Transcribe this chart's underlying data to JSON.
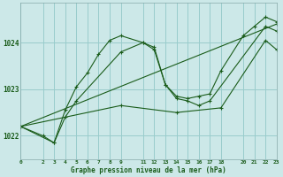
{
  "background_color": "#cce8e8",
  "grid_color": "#99cccc",
  "line_color": "#1a5c1a",
  "marker_color": "#1a5c1a",
  "xlabel": "Graphe pression niveau de la mer (hPa)",
  "xlim": [
    0,
    23
  ],
  "ylim": [
    1021.5,
    1024.85
  ],
  "yticks": [
    1022,
    1023,
    1024
  ],
  "xticks": [
    0,
    2,
    3,
    4,
    5,
    6,
    7,
    8,
    9,
    11,
    12,
    13,
    14,
    15,
    16,
    17,
    18,
    20,
    21,
    22,
    23
  ],
  "series": [
    {
      "x": [
        0,
        2,
        3,
        4,
        5,
        6,
        7,
        8,
        9,
        11,
        12,
        13,
        14,
        15,
        16,
        17,
        18,
        20,
        21,
        22,
        23
      ],
      "y": [
        1022.2,
        1022.0,
        1021.85,
        1022.55,
        1023.05,
        1023.35,
        1023.75,
        1024.05,
        1024.15,
        1024.0,
        1023.9,
        1023.1,
        1022.85,
        1022.8,
        1022.85,
        1022.9,
        1023.4,
        1024.15,
        1024.35,
        1024.55,
        1024.45
      ]
    },
    {
      "x": [
        0,
        3,
        4,
        5,
        9,
        11,
        12,
        13,
        14,
        15,
        16,
        17,
        22,
        23
      ],
      "y": [
        1022.2,
        1021.85,
        1022.4,
        1022.75,
        1023.8,
        1024.0,
        1023.85,
        1023.1,
        1022.8,
        1022.75,
        1022.65,
        1022.75,
        1024.35,
        1024.25
      ]
    },
    {
      "x": [
        0,
        23
      ],
      "y": [
        1022.2,
        1024.4
      ]
    },
    {
      "x": [
        0,
        9,
        14,
        18,
        22,
        23
      ],
      "y": [
        1022.2,
        1022.65,
        1022.5,
        1022.6,
        1024.05,
        1023.85
      ]
    }
  ]
}
